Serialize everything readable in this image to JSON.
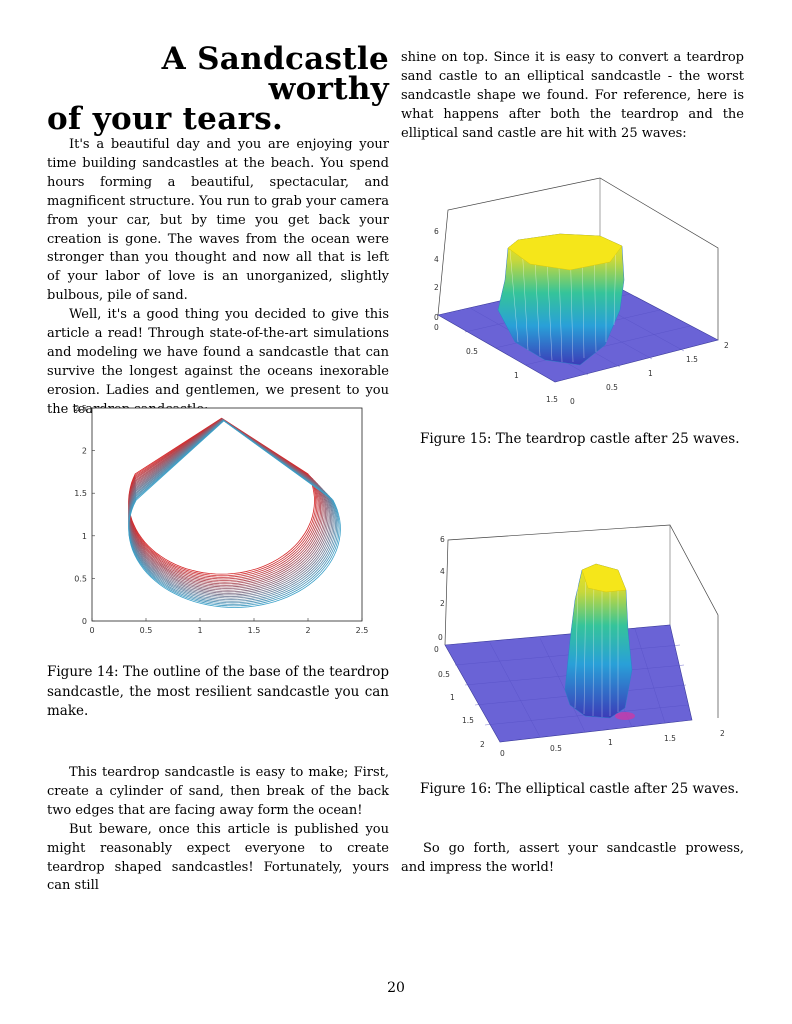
{
  "article": {
    "title_line1": "A Sandcastle worthy",
    "title_line2": "of your tears.",
    "left_paragraphs": [
      "It's a beautiful day and you are enjoying your time building sandcastles at the beach. You spend hours forming a beautiful, spectacular, and magnificent structure. You run to grab your camera from your car, but by time you get back your creation is gone. The waves from the ocean were stronger than you thought and now all that is left of your labor of love is an unorganized, slightly bulbous, pile of sand.",
      "Well, it's a good thing you decided to give this article a read! Through state-of-the-art simulations and modeling we have found a sandcastle that can survive the longest against the oceans inexorable erosion. Ladies and gentlemen, we present to you the teardrop sandcastle:"
    ],
    "left_paragraphs_2": [
      "This teardrop sandcastle is easy to make; First, create a cylinder of sand, then break of the back two edges that are facing away form the ocean!",
      "But beware, once this article is published you might reasonably expect everyone to create teardrop shaped sandcastles! Fortunately, yours can still"
    ],
    "right_paragraph_1": "shine on top. Since it is easy to convert a teardrop sand castle to an elliptical sandcastle - the worst sandcastle shape we found. For reference, here is what happens after both the teardrop and the elliptical sand castle are hit with 25 waves:",
    "right_paragraph_2": "So go forth, assert your sandcastle prowess, and impress the world!"
  },
  "figures": {
    "fig14_caption": "Figure 14: The outline of the base of the teardrop sandcastle, the most resilient sandcastle you can make.",
    "fig15_caption": "Figure 15: The teardrop castle after 25 waves.",
    "fig16_caption": "Figure 16: The elliptical castle after 25 waves."
  },
  "chart_data": [
    {
      "type": "line",
      "figure": "Figure 14",
      "title": "",
      "xlabel": "",
      "ylabel": "",
      "xlim": [
        0,
        2.5
      ],
      "ylim": [
        0,
        2.5
      ],
      "x_ticks": [
        "0",
        "0.5",
        "1",
        "1.5",
        "2",
        "2.5"
      ],
      "y_ticks": [
        "0",
        "0.5",
        "1",
        "1.5",
        "2",
        "2.5"
      ],
      "grid": false,
      "tip": [
        1.2,
        2.38
      ],
      "colors": [
        "#d62728",
        "#3aa0c8"
      ]
    },
    {
      "type": "surface",
      "figure": "Figure 15",
      "z_ticks": [
        "0",
        "2",
        "4",
        "6"
      ],
      "x_ticks": [
        "0",
        "0.5",
        "1",
        "1.5"
      ],
      "y_ticks": [
        "0",
        "0.5",
        "1",
        "1.5",
        "2"
      ]
    },
    {
      "type": "surface",
      "figure": "Figure 16",
      "z_ticks": [
        "0",
        "2",
        "4",
        "6"
      ],
      "x_ticks": [
        "0",
        "0.5",
        "1",
        "1.5",
        "2"
      ],
      "y_ticks": [
        "0",
        "0.5",
        "1",
        "1.5",
        "2"
      ]
    }
  ],
  "page": {
    "number": "20"
  }
}
